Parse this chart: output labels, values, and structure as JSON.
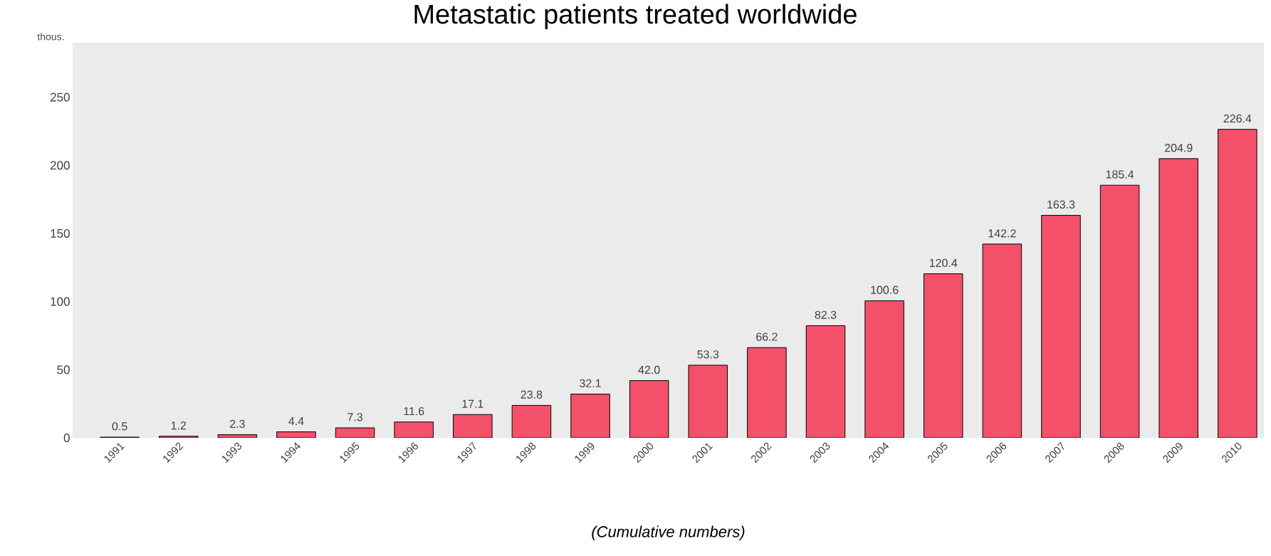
{
  "chart_data": {
    "type": "bar",
    "title": "Metastatic patients treated worldwide",
    "ylabel": "thous.",
    "xlabel": "(Cumulative numbers)",
    "categories": [
      "1991",
      "1992",
      "1993",
      "1994",
      "1995",
      "1996",
      "1997",
      "1998",
      "1999",
      "2000",
      "2001",
      "2002",
      "2003",
      "2004",
      "2005",
      "2006",
      "2007",
      "2008",
      "2009",
      "2010"
    ],
    "values": [
      0.5,
      1.2,
      2.3,
      4.4,
      7.3,
      11.6,
      17.1,
      23.8,
      32.1,
      42.0,
      53.3,
      66.2,
      82.3,
      100.6,
      120.4,
      142.2,
      163.3,
      185.4,
      204.9,
      226.4
    ],
    "value_labels": [
      "0.5",
      "1.2",
      "2.3",
      "4.4",
      "7.3",
      "11.6",
      "17.1",
      "23.8",
      "32.1",
      "42.0",
      "53.3",
      "66.2",
      "82.3",
      "100.6",
      "120.4",
      "142.2",
      "163.3",
      "185.4",
      "204.9",
      "226.4"
    ],
    "color": "#f4506a",
    "ylim": [
      0,
      290
    ],
    "yticks": [
      0,
      50,
      100,
      150,
      200,
      250
    ]
  }
}
